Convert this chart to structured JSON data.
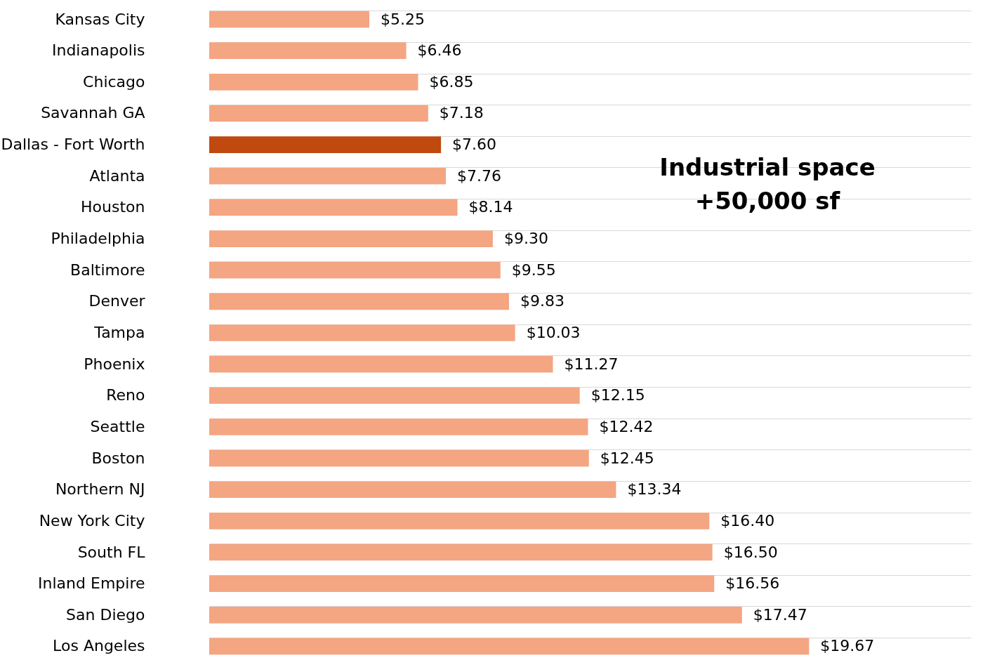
{
  "chart_data": {
    "type": "bar",
    "orientation": "horizontal",
    "categories": [
      "Kansas City",
      "Indianapolis",
      "Chicago",
      "Savannah GA",
      "Dallas - Fort Worth",
      "Atlanta",
      "Houston",
      "Philadelphia",
      "Baltimore",
      "Denver",
      "Tampa",
      "Phoenix",
      "Reno",
      "Seattle",
      "Boston",
      "Northern NJ",
      "New York City",
      "South FL",
      "Inland Empire",
      "San Diego",
      "Los Angeles"
    ],
    "values": [
      5.25,
      6.46,
      6.85,
      7.18,
      7.6,
      7.76,
      8.14,
      9.3,
      9.55,
      9.83,
      10.03,
      11.27,
      12.15,
      12.42,
      12.45,
      13.34,
      16.4,
      16.5,
      16.56,
      17.47,
      19.67
    ],
    "value_labels": [
      "$5.25",
      "$6.46",
      "$6.85",
      "$7.18",
      "$7.60",
      "$7.76",
      "$8.14",
      "$9.30",
      "$9.55",
      "$9.83",
      "$10.03",
      "$11.27",
      "$12.15",
      "$12.42",
      "$12.45",
      "$13.34",
      "$16.40",
      "$16.50",
      "$16.56",
      "$17.47",
      "$19.67"
    ],
    "colors": [
      "#f4a582",
      "#f4a582",
      "#f4a582",
      "#f4a582",
      "#c0490f",
      "#f4a582",
      "#f4a582",
      "#f4a582",
      "#f4a582",
      "#f4a582",
      "#f4a582",
      "#f4a582",
      "#f4a582",
      "#f4a582",
      "#f4a582",
      "#f4a582",
      "#f4a582",
      "#f4a582",
      "#f4a582",
      "#f4a582",
      "#f4a582"
    ],
    "annotations": [
      "Industrial space\n+50,000 sf"
    ],
    "grid": "y"
  }
}
